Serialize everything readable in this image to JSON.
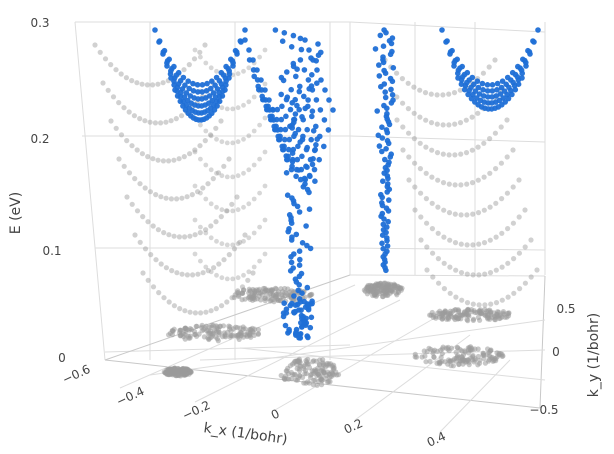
{
  "chart_data": {
    "type": "scatter",
    "subtype": "3d-scatter",
    "title": "",
    "axes": {
      "x": {
        "label": "k_x (1/bohr)",
        "ticks": [
          "−0.6",
          "−0.4",
          "−0.2",
          "0",
          "0.2",
          "0.4"
        ],
        "range": [
          -0.6,
          0.5
        ]
      },
      "y": {
        "label": "k_y (1/bohr)",
        "ticks": [
          "0.5",
          "0",
          "−0.5"
        ],
        "range": [
          -0.6,
          0.6
        ]
      },
      "z": {
        "label": "E (eV)",
        "ticks": [
          "0",
          "0.1",
          "0.2",
          "0.3"
        ],
        "range": [
          0,
          0.3
        ]
      }
    },
    "grid": true,
    "legend": "none",
    "series": [
      {
        "color": "#1f6fd6",
        "cluster_centers": [
          [
            -0.4,
            0.35
          ],
          [
            -0.18,
            0.05
          ],
          [
            0.05,
            0.25
          ],
          [
            0.3,
            0.45
          ],
          [
            0.2,
            -0.05
          ]
        ],
        "energy_range": [
          0,
          0.3
        ]
      },
      {
        "color": "#9a9a9a",
        "note_shape": "band-projection",
        "energy_range": [
          0,
          0.3
        ]
      }
    ]
  }
}
